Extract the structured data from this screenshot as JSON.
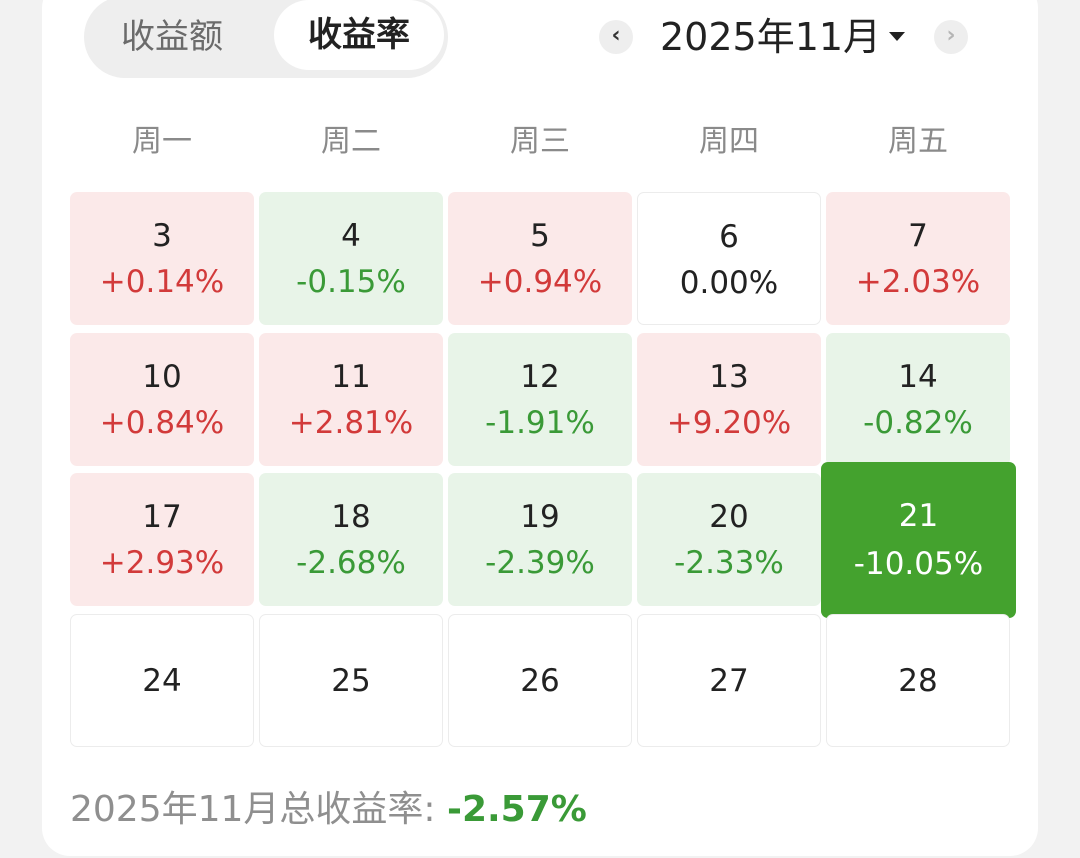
{
  "tabs": [
    {
      "label": "收益额",
      "active": false
    },
    {
      "label": "收益率",
      "active": true
    }
  ],
  "month_selector": {
    "label": "2025年11月",
    "prev_icon": "chevron-left-icon",
    "next_icon": "chevron-right-icon",
    "dropdown_icon": "caret-down-icon"
  },
  "weekdays": [
    "周一",
    "周二",
    "周三",
    "周四",
    "周五"
  ],
  "colors": {
    "up": "#d23a3a",
    "up_bg": "#fbe9e9",
    "down": "#3a9a37",
    "down_bg": "#e8f4e8",
    "selected_bg": "#44a22e"
  },
  "weeks": [
    [
      {
        "day": "3",
        "pct": "+0.14%",
        "trend": "up"
      },
      {
        "day": "4",
        "pct": "-0.15%",
        "trend": "down"
      },
      {
        "day": "5",
        "pct": "+0.94%",
        "trend": "up"
      },
      {
        "day": "6",
        "pct": "0.00%",
        "trend": "flat"
      },
      {
        "day": "7",
        "pct": "+2.03%",
        "trend": "up"
      }
    ],
    [
      {
        "day": "10",
        "pct": "+0.84%",
        "trend": "up"
      },
      {
        "day": "11",
        "pct": "+2.81%",
        "trend": "up"
      },
      {
        "day": "12",
        "pct": "-1.91%",
        "trend": "down"
      },
      {
        "day": "13",
        "pct": "+9.20%",
        "trend": "up"
      },
      {
        "day": "14",
        "pct": "-0.82%",
        "trend": "down"
      }
    ],
    [
      {
        "day": "17",
        "pct": "+2.93%",
        "trend": "up"
      },
      {
        "day": "18",
        "pct": "-2.68%",
        "trend": "down"
      },
      {
        "day": "19",
        "pct": "-2.39%",
        "trend": "down"
      },
      {
        "day": "20",
        "pct": "-2.33%",
        "trend": "down"
      },
      {
        "day": "21",
        "pct": "-10.05%",
        "trend": "down",
        "selected": true
      }
    ],
    [
      {
        "day": "24",
        "pct": "",
        "trend": "empty"
      },
      {
        "day": "25",
        "pct": "",
        "trend": "empty"
      },
      {
        "day": "26",
        "pct": "",
        "trend": "empty"
      },
      {
        "day": "27",
        "pct": "",
        "trend": "empty"
      },
      {
        "day": "28",
        "pct": "",
        "trend": "empty"
      }
    ]
  ],
  "summary": {
    "label": "2025年11月总收益率: ",
    "value": "-2.57%"
  }
}
